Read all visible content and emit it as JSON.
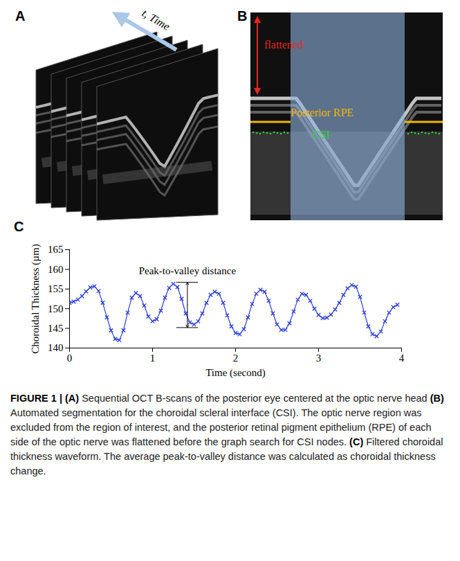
{
  "panels": [
    {
      "letter": "A",
      "arrow_label": "t, Time"
    },
    {
      "letter": "B",
      "flattened": "flattened",
      "rpe_label": "Posterior RPE",
      "csi_label": "CSI"
    }
  ],
  "chart_data": {
    "letter": "C",
    "type": "line",
    "marker": "x",
    "color": "#2b3fd4",
    "xlabel": "Time (second)",
    "ylabel": "Choroidal Thickness (µm)",
    "x": [
      0,
      0.05,
      0.1,
      0.15,
      0.2,
      0.25,
      0.3,
      0.35,
      0.4,
      0.45,
      0.5,
      0.55,
      0.6,
      0.65,
      0.7,
      0.75,
      0.8,
      0.85,
      0.9,
      0.95,
      1,
      1.05,
      1.1,
      1.15,
      1.2,
      1.25,
      1.3,
      1.35,
      1.4,
      1.45,
      1.5,
      1.55,
      1.6,
      1.65,
      1.7,
      1.75,
      1.8,
      1.85,
      1.9,
      1.95,
      2,
      2.05,
      2.1,
      2.15,
      2.2,
      2.25,
      2.3,
      2.35,
      2.4,
      2.45,
      2.5,
      2.55,
      2.6,
      2.65,
      2.7,
      2.75,
      2.8,
      2.85,
      2.9,
      2.95,
      3,
      3.05,
      3.1,
      3.15,
      3.2,
      3.25,
      3.3,
      3.35,
      3.4,
      3.45,
      3.5,
      3.55,
      3.6,
      3.65,
      3.7,
      3.75,
      3.8,
      3.85,
      3.9,
      3.95
    ],
    "values": [
      151.5,
      151.8,
      152.3,
      153.2,
      154.4,
      155.4,
      155.7,
      154.5,
      151.5,
      147.8,
      144.5,
      142.3,
      142.0,
      144.5,
      149.0,
      152.8,
      154.0,
      153.2,
      150.8,
      148.0,
      146.8,
      147.3,
      149.5,
      152.8,
      155.3,
      156.3,
      155.5,
      152.5,
      148.8,
      146.5,
      146.0,
      146.8,
      148.8,
      151.5,
      153.5,
      154.3,
      153.8,
      151.5,
      148.3,
      145.5,
      143.8,
      143.5,
      144.8,
      147.8,
      151.2,
      153.8,
      154.8,
      154.3,
      152.0,
      148.8,
      146.0,
      144.6,
      144.6,
      146.3,
      149.3,
      152.3,
      153.8,
      153.5,
      152.0,
      150.0,
      148.4,
      147.6,
      147.7,
      148.5,
      149.8,
      151.5,
      153.5,
      155.2,
      156.0,
      155.6,
      153.0,
      149.0,
      145.5,
      143.5,
      143.0,
      144.2,
      146.8,
      149.0,
      150.4,
      151.0
    ],
    "xlim": [
      0,
      4
    ],
    "xticks": [
      0,
      1,
      2,
      3,
      4
    ],
    "ylim": [
      140,
      165
    ],
    "yticks": [
      140,
      145,
      150,
      155,
      160,
      165
    ],
    "annotations": [
      {
        "text": "Peak-to-valley distance",
        "x": 1.42,
        "y1": 145.2,
        "y2": 156.7
      }
    ]
  },
  "caption": {
    "label": "FIGURE 1 |",
    "parts": [
      {
        "letter": "(A)",
        "text": "Sequential OCT B-scans of the posterior eye centered at the optic nerve head"
      },
      {
        "letter": "(B)",
        "text": "Automated segmentation for the choroidal scleral interface (CSI). The optic nerve region was excluded from the region of interest, and the posterior retinal pigment epithelium (RPE) of each side of the optic nerve was flattened before the graph search for CSI nodes."
      },
      {
        "letter": "(C)",
        "text": "Filtered choroidal thickness waveform. The average peak-to-valley distance was calculated as choroidal thickness change."
      }
    ]
  }
}
